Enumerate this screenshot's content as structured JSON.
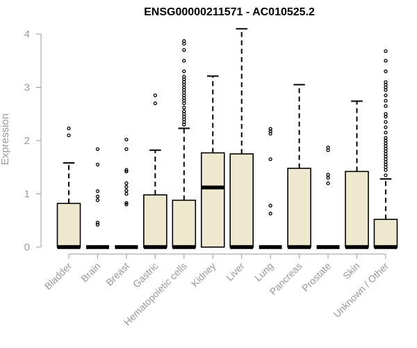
{
  "chart_data": {
    "type": "boxplot",
    "title": "ENSG00000211571 - AC010525.2",
    "xlabel": "",
    "ylabel": "Expression",
    "ylim": [
      0,
      4
    ],
    "yticks": [
      0,
      1,
      2,
      3,
      4
    ],
    "grid": false,
    "colors": {
      "box_fill": "#EEE8D0",
      "stroke": "#000000",
      "axis": "#999999"
    },
    "categories": [
      "Bladder",
      "Brain",
      "Breast",
      "Gastric",
      "Hematopoietic cells",
      "Kidney",
      "Liver",
      "Lung",
      "Pancreas",
      "Prostate",
      "Skin",
      "Unknown / Other"
    ],
    "boxes": [
      {
        "category": "Bladder",
        "q1": 0,
        "median": 0,
        "q3": 0.82,
        "whisker_low": 0,
        "whisker_high": 1.58,
        "outliers": [
          2.1,
          2.23
        ]
      },
      {
        "category": "Brain",
        "q1": 0,
        "median": 0,
        "q3": 0,
        "whisker_low": 0,
        "whisker_high": 0,
        "outliers": [
          0.42,
          0.46,
          0.88,
          0.95,
          1.05,
          1.55,
          1.84
        ]
      },
      {
        "category": "Breast",
        "q1": 0,
        "median": 0,
        "q3": 0,
        "whisker_low": 0,
        "whisker_high": 0,
        "outliers": [
          0.8,
          0.83,
          1.0,
          1.06,
          1.13,
          1.2,
          1.42,
          1.45,
          1.84,
          2.02
        ]
      },
      {
        "category": "Gastric",
        "q1": 0,
        "median": 0,
        "q3": 0.98,
        "whisker_low": 0,
        "whisker_high": 1.82,
        "outliers": [
          2.7,
          2.85
        ]
      },
      {
        "category": "Hematopoietic cells",
        "q1": 0,
        "median": 0,
        "q3": 0.88,
        "whisker_low": 0,
        "whisker_high": 2.23,
        "outliers": [
          2.3,
          2.35,
          2.4,
          2.45,
          2.5,
          2.55,
          2.62,
          2.7,
          2.75,
          2.8,
          2.85,
          2.9,
          2.95,
          3.0,
          3.05,
          3.1,
          3.15,
          3.2,
          3.3,
          3.5,
          3.7,
          3.82,
          3.87
        ]
      },
      {
        "category": "Kidney",
        "q1": 0,
        "median": 1.12,
        "q3": 1.77,
        "whisker_low": 0,
        "whisker_high": 3.21,
        "outliers": []
      },
      {
        "category": "Liver",
        "q1": 0,
        "median": 0,
        "q3": 1.75,
        "whisker_low": 0,
        "whisker_high": 4.1,
        "outliers": []
      },
      {
        "category": "Lung",
        "q1": 0,
        "median": 0,
        "q3": 0,
        "whisker_low": 0,
        "whisker_high": 0,
        "outliers": [
          0.63,
          0.78,
          1.65,
          2.13,
          2.18,
          2.22
        ]
      },
      {
        "category": "Pancreas",
        "q1": 0,
        "median": 0,
        "q3": 1.48,
        "whisker_low": 0,
        "whisker_high": 3.05,
        "outliers": []
      },
      {
        "category": "Prostate",
        "q1": 0,
        "median": 0,
        "q3": 0,
        "whisker_low": 0,
        "whisker_high": 0,
        "outliers": [
          1.2,
          1.3,
          1.36,
          1.82,
          1.87
        ]
      },
      {
        "category": "Skin",
        "q1": 0,
        "median": 0,
        "q3": 1.42,
        "whisker_low": 0,
        "whisker_high": 2.74,
        "outliers": []
      },
      {
        "category": "Unknown / Other",
        "q1": 0,
        "median": 0,
        "q3": 0.52,
        "whisker_low": 0,
        "whisker_high": 1.28,
        "outliers": [
          1.35,
          1.45,
          1.5,
          1.55,
          1.6,
          1.65,
          1.7,
          1.75,
          1.8,
          1.85,
          1.9,
          1.95,
          2.0,
          2.05,
          2.15,
          2.25,
          2.35,
          2.45,
          2.5,
          2.65,
          2.75,
          2.85,
          2.95,
          3.0,
          3.05,
          3.1,
          3.3,
          3.5,
          3.68
        ]
      }
    ]
  }
}
